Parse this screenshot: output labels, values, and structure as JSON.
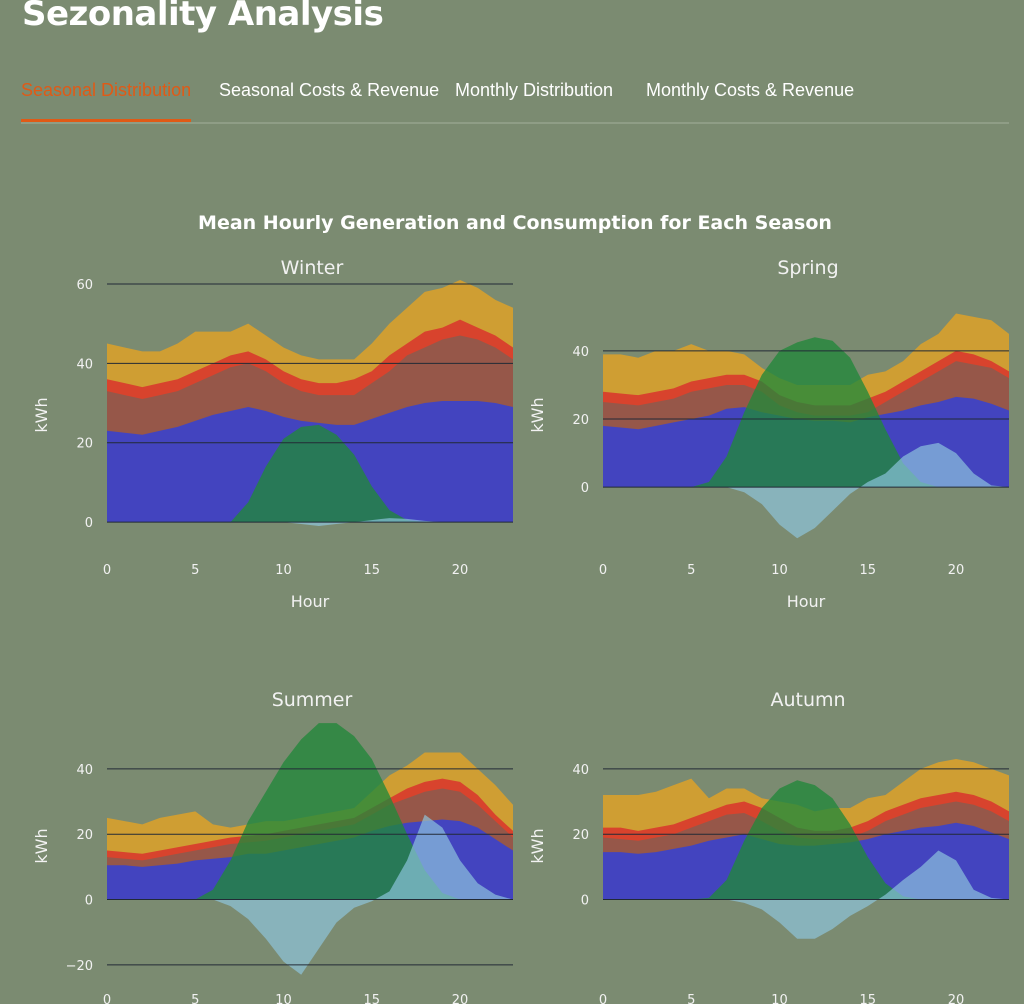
{
  "page": {
    "title": "Sezonality Analysis"
  },
  "tabs": [
    {
      "label": "Seasonal Distribution",
      "active": true
    },
    {
      "label": "Seasonal Costs & Revenue",
      "active": false
    },
    {
      "label": "Monthly Distribution",
      "active": false
    },
    {
      "label": "Monthly Costs & Revenue",
      "active": false
    }
  ],
  "colors": {
    "background": "#7b8b71",
    "active_tab": "#e05a16",
    "layer_base": "#3a42cc",
    "layer_mid": "#8f5a4c",
    "layer_red": "#d8392c",
    "layer_top": "#d8a02c",
    "generation": "#21883a",
    "export": "#8fc5de"
  },
  "chart_data": {
    "type": "area",
    "title": "Mean Hourly Generation and Consumption for Each Season",
    "xlabel": "Hour",
    "ylabel": "kWh",
    "x": [
      0,
      1,
      2,
      3,
      4,
      5,
      6,
      7,
      8,
      9,
      10,
      11,
      12,
      13,
      14,
      15,
      16,
      17,
      18,
      19,
      20,
      21,
      22,
      23
    ],
    "xticks": [
      0,
      5,
      10,
      15,
      20
    ],
    "grid": "horizontal",
    "panels": [
      {
        "name": "Winter",
        "ylim": [
          -2,
          62
        ],
        "yticks": [
          0,
          20,
          40,
          60
        ],
        "show_xlabel": true,
        "layers": [
          [
            23,
            22.5,
            22,
            23,
            24,
            25.5,
            27,
            28,
            29,
            28,
            26.5,
            25.5,
            25,
            24.5,
            24.5,
            26,
            27.5,
            29,
            30,
            30.5,
            30.5,
            30.5,
            30,
            29
          ],
          [
            33,
            32,
            31,
            32,
            33,
            35,
            37,
            39,
            40,
            38,
            35,
            33,
            32,
            32,
            32,
            35,
            38,
            42,
            44,
            46,
            47,
            46,
            44,
            41
          ],
          [
            36,
            35,
            34,
            35,
            36,
            38,
            40,
            42,
            43,
            41,
            38,
            36,
            35,
            35,
            36,
            38,
            42,
            45,
            48,
            49,
            51,
            49,
            47,
            44
          ],
          [
            45,
            44,
            43,
            43,
            45,
            48,
            48,
            48,
            50,
            47,
            44,
            42,
            41,
            41,
            41,
            45,
            50,
            54,
            58,
            59,
            61,
            59,
            56,
            54
          ]
        ],
        "generation": [
          0,
          0,
          0,
          0,
          0,
          0,
          0,
          0,
          5,
          14,
          21,
          24,
          24.5,
          22,
          17,
          9,
          3,
          0.5,
          0,
          0,
          0,
          0,
          0,
          0
        ],
        "export": [
          0,
          0,
          0,
          0,
          0,
          0,
          0,
          0,
          0,
          0,
          0,
          -0.5,
          -1,
          -0.5,
          0,
          0.5,
          1,
          0.8,
          0.3,
          0,
          0,
          0,
          0,
          0
        ]
      },
      {
        "name": "Spring",
        "ylim": [
          -17,
          62
        ],
        "yticks": [
          0,
          20,
          40
        ],
        "show_xlabel": true,
        "layers": [
          [
            18,
            17.5,
            17,
            18,
            19,
            20,
            21,
            23,
            23.5,
            22,
            21,
            20,
            19.5,
            19.5,
            19,
            20.5,
            21.5,
            22.5,
            24,
            25,
            26.5,
            26,
            24.5,
            22.5
          ],
          [
            25,
            24.5,
            24,
            25,
            26,
            28,
            29,
            30,
            30,
            28,
            24,
            22,
            21,
            21,
            21,
            22,
            25,
            28,
            31,
            34,
            37,
            36,
            35,
            32
          ],
          [
            28,
            27.5,
            27,
            28,
            29,
            31,
            32,
            33,
            33,
            31,
            27,
            25,
            24,
            24,
            24,
            26,
            28,
            31,
            34,
            37,
            40,
            39,
            37,
            34
          ],
          [
            39,
            39,
            38,
            40,
            40,
            42,
            40,
            40,
            39,
            35,
            32,
            30,
            30,
            30,
            30,
            33,
            34,
            37,
            42,
            45,
            51,
            50,
            49,
            45
          ]
        ],
        "generation": [
          0,
          0,
          0,
          0,
          0,
          0,
          1.5,
          9,
          22,
          33,
          40,
          42.5,
          44,
          43,
          38,
          28,
          17,
          7,
          1.5,
          0,
          0,
          0,
          0,
          0
        ],
        "export": [
          0,
          0,
          0,
          0,
          0,
          0,
          0,
          0,
          -1.5,
          -5,
          -11,
          -15,
          -12,
          -7,
          -2,
          1.5,
          4,
          9,
          12,
          13,
          10,
          4,
          0.5,
          0
        ]
      },
      {
        "name": "Summer",
        "ylim": [
          -24,
          58
        ],
        "yticks": [
          -20,
          0,
          20,
          40
        ],
        "show_xlabel": false,
        "layers": [
          [
            10.5,
            10.5,
            10,
            10.5,
            11,
            12,
            12.5,
            13,
            14,
            14,
            15,
            16,
            17,
            18,
            19,
            21,
            22.5,
            23.5,
            24,
            24.5,
            24,
            22,
            18.5,
            15
          ],
          [
            13,
            12.5,
            12,
            13,
            14,
            15,
            16,
            17,
            17.5,
            18,
            19,
            20,
            21,
            22,
            23,
            26,
            29,
            31,
            33,
            34,
            33,
            29,
            24,
            19
          ],
          [
            15,
            14.5,
            14,
            15,
            16,
            17,
            18,
            19,
            19.5,
            20,
            21,
            22,
            23,
            24,
            25,
            28,
            31,
            34,
            36,
            37,
            36,
            32,
            26,
            21
          ],
          [
            25,
            24,
            23,
            25,
            26,
            27,
            23,
            22,
            23,
            24,
            24,
            25,
            26,
            27,
            28,
            33,
            38,
            41,
            45,
            45,
            45,
            40,
            35,
            29
          ]
        ],
        "generation": [
          0,
          0,
          0,
          0,
          0,
          0,
          3,
          12,
          24,
          33,
          42,
          49,
          54,
          54,
          50,
          43,
          32,
          20,
          9,
          2,
          0,
          0,
          0,
          0
        ],
        "export": [
          0,
          0,
          0,
          0,
          0,
          0,
          0,
          -2,
          -6,
          -12,
          -19,
          -23,
          -15,
          -7,
          -2.5,
          -0.5,
          2.5,
          12,
          26,
          22,
          12,
          5,
          1.5,
          0
        ]
      },
      {
        "name": "Autumn",
        "ylim": [
          -24,
          58
        ],
        "yticks": [
          0,
          20,
          40
        ],
        "show_xlabel": false,
        "layers": [
          [
            14.5,
            14.5,
            14,
            14.5,
            15.5,
            16.5,
            18,
            19,
            20,
            18.5,
            17,
            16.5,
            16.5,
            17,
            17.5,
            18.5,
            20,
            21,
            22,
            22.5,
            23.5,
            22.5,
            20.5,
            18.5
          ],
          [
            19,
            18.5,
            18,
            19,
            20,
            22,
            24,
            26,
            26.5,
            24,
            21,
            19,
            18.5,
            18.5,
            19,
            21,
            24,
            26,
            28,
            29,
            30,
            29,
            27,
            24
          ],
          [
            22,
            22,
            21,
            22,
            23,
            25,
            27,
            29,
            30,
            28,
            25,
            22,
            21,
            21,
            22,
            24,
            27,
            29,
            31,
            32,
            33,
            32,
            30,
            27
          ],
          [
            32,
            32,
            32,
            33,
            35,
            37,
            31,
            34,
            34,
            31,
            30,
            29,
            27,
            28,
            28,
            31,
            32,
            36,
            40,
            42,
            43,
            42,
            40,
            38
          ]
        ],
        "generation": [
          0,
          0,
          0,
          0,
          0,
          0,
          0.5,
          6,
          18,
          28,
          34,
          36.5,
          35,
          31,
          23,
          13,
          5,
          1,
          0,
          0,
          0,
          0,
          0,
          0
        ],
        "export": [
          0,
          0,
          0,
          0,
          0,
          0,
          0,
          0,
          -1,
          -3,
          -7,
          -12,
          -12,
          -9,
          -5,
          -2,
          1.5,
          6,
          10,
          15,
          12,
          3,
          0.5,
          0
        ]
      }
    ]
  }
}
